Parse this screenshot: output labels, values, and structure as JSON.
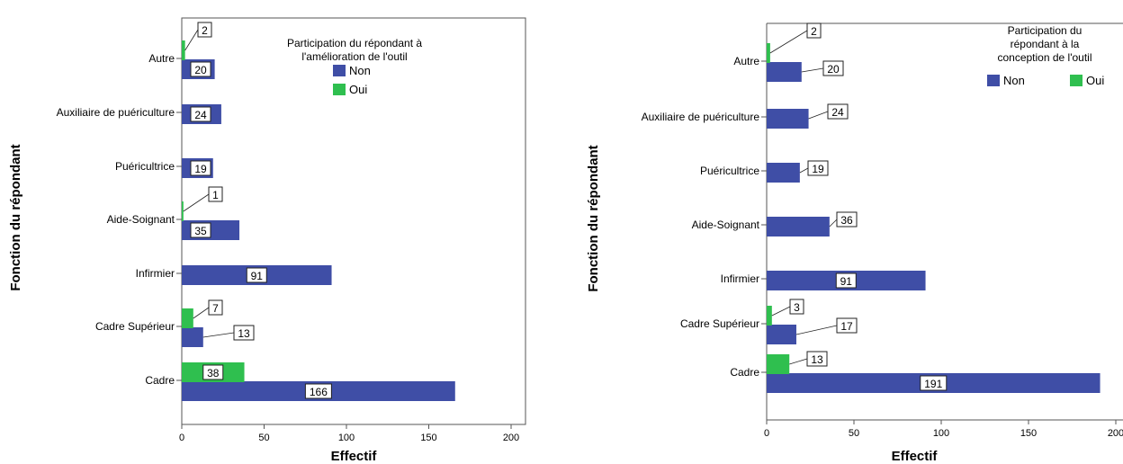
{
  "chart_data": [
    {
      "type": "bar",
      "orientation": "horizontal",
      "categories": [
        "Autre",
        "Auxiliaire de puériculture",
        "Puéricultrice",
        "Aide-Soignant",
        "Infirmier",
        "Cadre Supérieur",
        "Cadre"
      ],
      "series": [
        {
          "name": "Non",
          "color": "#3f4ea6",
          "values": [
            20,
            24,
            19,
            35,
            91,
            13,
            166
          ]
        },
        {
          "name": "Oui",
          "color": "#2fbf4f",
          "values": [
            2,
            null,
            null,
            1,
            null,
            7,
            38
          ]
        }
      ],
      "xlabel": "Effectif",
      "ylabel": "Fonction du répondant",
      "xlim": [
        0,
        200
      ],
      "xticks": [
        "0",
        "50",
        "100",
        "150",
        "200"
      ],
      "legend": {
        "title": "Participation du répondant à l'amélioration de l'outil",
        "title_lines": [
          "Participation du répondant à",
          "l'amélioration de l'outil"
        ],
        "position": "top-right",
        "layout": "vertical"
      },
      "grid": false
    },
    {
      "type": "bar",
      "orientation": "horizontal",
      "categories": [
        "Autre",
        "Auxiliaire de puériculture",
        "Puéricultrice",
        "Aide-Soignant",
        "Infirmier",
        "Cadre Supérieur",
        "Cadre"
      ],
      "series": [
        {
          "name": "Non",
          "color": "#3f4ea6",
          "values": [
            20,
            24,
            19,
            36,
            91,
            17,
            191
          ]
        },
        {
          "name": "Oui",
          "color": "#2fbf4f",
          "values": [
            2,
            null,
            null,
            null,
            null,
            3,
            13
          ]
        }
      ],
      "xlabel": "Effectif",
      "ylabel": "Fonction du répondant",
      "xlim": [
        0,
        200
      ],
      "xticks": [
        "0",
        "50",
        "100",
        "150",
        "200"
      ],
      "legend": {
        "title": "Participation du répondant à la conception de l'outil",
        "title_lines": [
          "Participation du",
          "répondant à la",
          "conception de l'outil"
        ],
        "position": "top-right",
        "layout": "horizontal"
      },
      "grid": false
    }
  ]
}
